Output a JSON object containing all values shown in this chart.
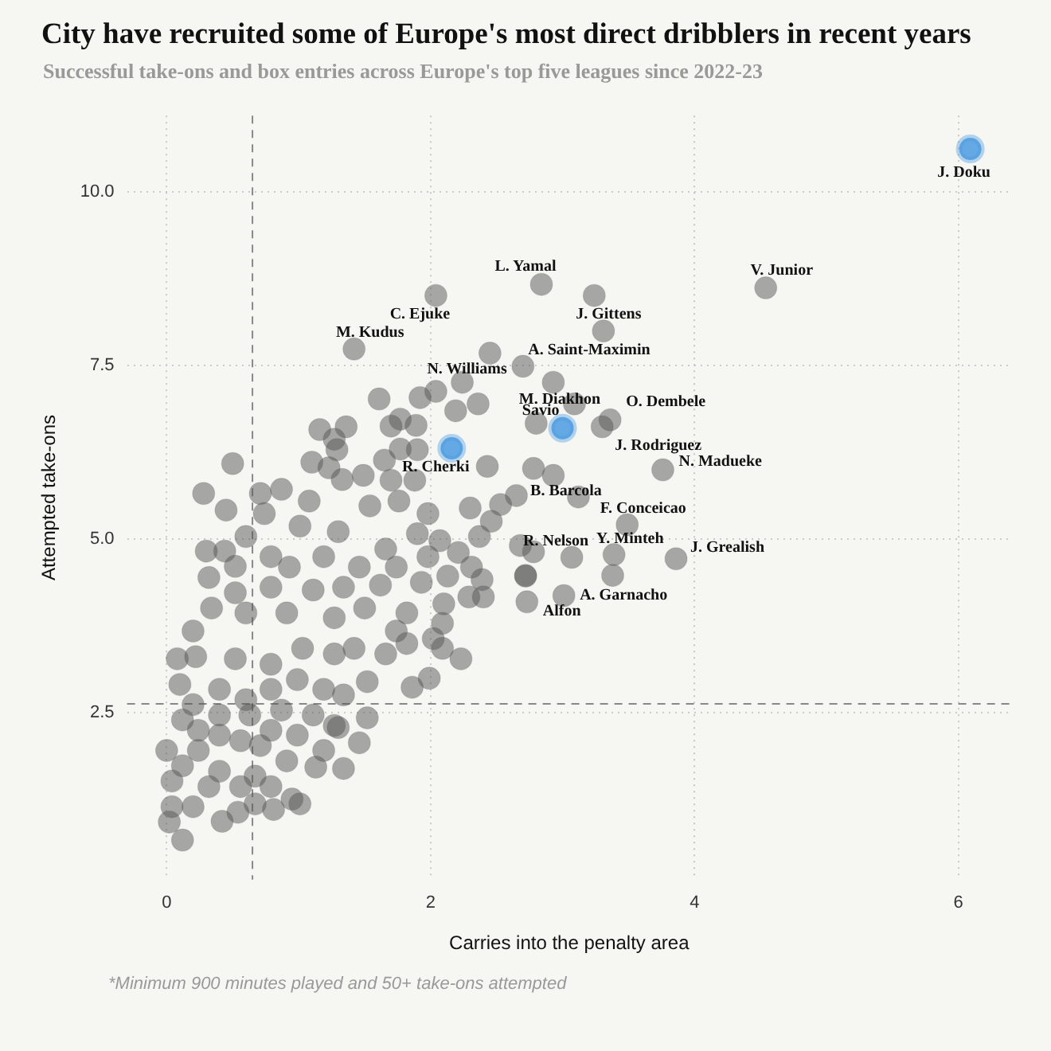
{
  "chart_data": {
    "type": "scatter",
    "title": "City have recruited some of Europe's most direct dribblers in recent years",
    "subtitle": "Successful take-ons and box entries across Europe's top five leagues since 2022-23",
    "xlabel": "Carries into the penalty area",
    "ylabel": "Attempted take-ons",
    "xlim": [
      -0.3,
      6.4
    ],
    "ylim": [
      0.1,
      11.1
    ],
    "xticks": [
      0,
      2,
      4,
      6
    ],
    "yticks": [
      2.5,
      {
        "value": 5,
        "label": "5.0"
      },
      7.5,
      {
        "value": 10,
        "label": "10.0"
      }
    ],
    "grid": true,
    "legend": false,
    "marker": "circle",
    "series": [
      {
        "color": "#555555",
        "x": [
          2.84,
          2.04,
          3.24,
          3.31,
          1.42,
          2.7,
          2.93,
          3.36,
          3.3,
          3.76,
          2.93,
          3.49,
          3.07,
          3.39,
          3.86,
          3.01,
          2.73,
          4.54,
          2.45,
          3.09,
          2.78,
          3.12,
          2.68,
          2.78,
          2.72,
          3.38,
          2.8,
          2.24,
          2.04,
          1.92,
          1.61,
          2.36,
          2.19,
          1.16,
          1.36,
          1.77,
          1.89,
          1.7,
          1.27,
          1.29,
          1.77,
          1.9,
          1.1,
          1.23,
          0.5,
          1.33,
          1.49,
          1.65,
          1.7,
          1.88,
          2.43,
          0.28,
          0.45,
          0.71,
          0.87,
          1.08,
          1.54,
          1.76,
          1.98,
          2.3,
          2.53,
          2.65,
          2.46,
          0.74,
          1.01,
          1.3,
          1.66,
          1.9,
          2.07,
          2.21,
          2.37,
          0.3,
          0.44,
          0.6,
          0.32,
          0.52,
          0.79,
          0.93,
          1.19,
          1.46,
          1.74,
          1.98,
          2.13,
          2.31,
          2.39,
          2.4,
          2.29,
          2.1,
          2.72,
          1.93,
          1.62,
          1.34,
          1.11,
          0.79,
          0.52,
          0.34,
          0.6,
          0.91,
          1.27,
          1.5,
          1.82,
          2.09,
          0.2,
          1.74,
          2.02,
          2.23,
          1.99,
          1.86,
          1.52,
          1.52,
          1.46,
          1.34,
          1.13,
          1.01,
          0.95,
          0.81,
          0.67,
          0.54,
          0.42,
          0.12,
          0.02,
          0.08,
          0.1,
          0.22,
          0.0,
          0.04,
          0.12,
          0.24,
          0.4,
          0.56,
          0.67,
          0.79,
          0.91,
          0.99,
          1.19,
          1.27,
          1.11,
          1.3,
          0.2,
          0.4,
          0.6,
          0.79,
          0.99,
          1.19,
          1.34,
          0.52,
          0.79,
          1.03,
          1.27,
          1.42,
          1.66,
          1.82,
          2.09,
          0.32,
          0.2,
          0.56,
          0.04,
          0.12,
          0.4,
          0.63,
          0.87,
          0.24,
          0.4,
          0.71,
          0.79
        ],
        "values": [
          8.67,
          8.51,
          8.51,
          8.0,
          7.74,
          7.49,
          7.26,
          6.72,
          6.62,
          6.0,
          5.92,
          5.21,
          4.74,
          4.78,
          4.72,
          4.19,
          4.1,
          8.62,
          7.68,
          6.95,
          6.02,
          5.61,
          4.91,
          4.82,
          4.48,
          4.48,
          6.67,
          7.26,
          7.13,
          7.04,
          7.02,
          6.95,
          6.85,
          6.58,
          6.62,
          6.73,
          6.64,
          6.63,
          6.44,
          6.29,
          6.3,
          6.29,
          6.11,
          6.03,
          6.09,
          5.86,
          5.92,
          6.14,
          5.85,
          5.85,
          6.05,
          5.66,
          5.42,
          5.66,
          5.72,
          5.55,
          5.48,
          5.55,
          5.37,
          5.45,
          5.5,
          5.63,
          5.26,
          5.37,
          5.19,
          5.11,
          4.86,
          5.08,
          4.98,
          4.81,
          5.04,
          4.83,
          4.83,
          5.04,
          4.45,
          4.61,
          4.75,
          4.6,
          4.75,
          4.6,
          4.6,
          4.75,
          4.47,
          4.6,
          4.42,
          4.17,
          4.17,
          4.07,
          4.47,
          4.38,
          4.34,
          4.31,
          4.27,
          4.31,
          4.23,
          4.01,
          3.94,
          3.94,
          3.87,
          4.01,
          3.94,
          3.79,
          3.68,
          3.68,
          3.57,
          3.28,
          3.0,
          2.87,
          2.95,
          2.43,
          2.07,
          1.7,
          1.72,
          1.19,
          1.26,
          1.11,
          1.19,
          1.07,
          0.94,
          0.67,
          0.93,
          3.28,
          2.91,
          3.31,
          1.96,
          1.52,
          2.4,
          1.96,
          1.66,
          2.1,
          1.59,
          2.25,
          1.81,
          2.18,
          1.96,
          2.32,
          2.47,
          2.29,
          2.62,
          2.84,
          2.69,
          2.84,
          2.98,
          2.84,
          2.76,
          3.28,
          3.2,
          3.43,
          3.35,
          3.43,
          3.35,
          3.5,
          3.43,
          1.44,
          1.15,
          1.44,
          1.15,
          1.74,
          2.47,
          2.47,
          2.54,
          2.25,
          2.18,
          2.03,
          1.44
        ]
      },
      {
        "color": "#4a9be0",
        "x": [
          6.09,
          3.0,
          2.16
        ],
        "values": [
          10.62,
          6.6,
          6.31
        ]
      }
    ],
    "ref_lines": [
      {
        "axis": "x",
        "value": 0.65,
        "line_style": "dashed"
      },
      {
        "axis": "y",
        "value": 2.63,
        "line_style": "dashed"
      }
    ],
    "annotations": [
      {
        "text": "J. Doku",
        "x": 6.09,
        "y": 10.62
      },
      {
        "text": "V. Junior",
        "x": 4.54,
        "y": 8.62
      },
      {
        "text": "L. Yamal",
        "x": 2.84,
        "y": 8.67
      },
      {
        "text": "C. Ejuke",
        "x": 2.04,
        "y": 8.51
      },
      {
        "text": "J. Gittens",
        "x": 3.24,
        "y": 8.51
      },
      {
        "text": "A. Saint-Maximin",
        "x": 3.31,
        "y": 8.0
      },
      {
        "text": "M. Kudus",
        "x": 1.42,
        "y": 7.74
      },
      {
        "text": "N. Williams",
        "x": 2.7,
        "y": 7.49
      },
      {
        "text": "M. Diakhon",
        "x": 2.93,
        "y": 7.26
      },
      {
        "text": "O. Dembele",
        "x": 3.36,
        "y": 6.72
      },
      {
        "text": "Savio",
        "x": 3.0,
        "y": 6.6
      },
      {
        "text": "J. Rodriguez",
        "x": 3.3,
        "y": 6.62
      },
      {
        "text": "R. Cherki",
        "x": 2.16,
        "y": 6.31
      },
      {
        "text": "N. Madueke",
        "x": 3.76,
        "y": 6.0
      },
      {
        "text": "B. Barcola",
        "x": 2.93,
        "y": 5.92
      },
      {
        "text": "F. Conceicao",
        "x": 3.49,
        "y": 5.21
      },
      {
        "text": "R. Nelson",
        "x": 3.07,
        "y": 4.74
      },
      {
        "text": "Y. Minteh",
        "x": 3.39,
        "y": 4.78
      },
      {
        "text": "J. Grealish",
        "x": 3.86,
        "y": 4.72
      },
      {
        "text": "A. Garnacho",
        "x": 3.01,
        "y": 4.19
      },
      {
        "text": "Alfon",
        "x": 2.73,
        "y": 4.1
      },
      "*Minimum 900 minutes played and 50+ take-ons attempted"
    ]
  }
}
